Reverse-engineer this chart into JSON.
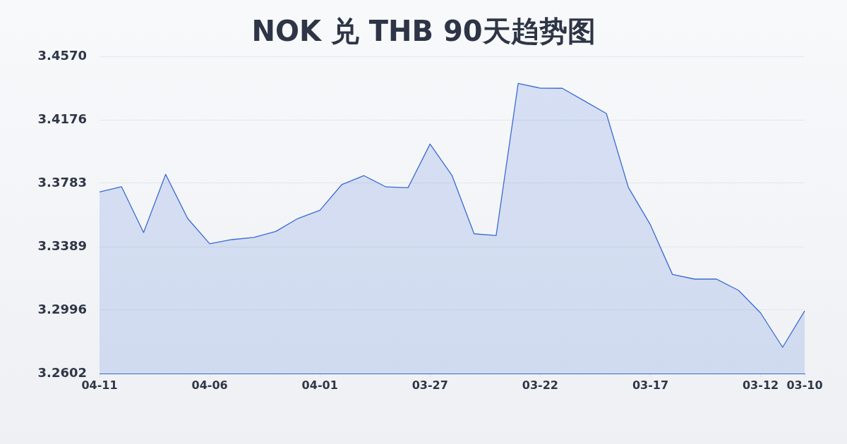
{
  "chart_data": {
    "type": "area",
    "title": "NOK 兑 THB 90天趋势图",
    "categories": [
      "04-11",
      null,
      null,
      null,
      null,
      "04-06",
      null,
      null,
      null,
      null,
      "04-01",
      null,
      null,
      null,
      null,
      "03-27",
      null,
      null,
      null,
      null,
      "03-22",
      null,
      null,
      null,
      null,
      "03-17",
      null,
      null,
      null,
      null,
      "03-12",
      null,
      "03-10"
    ],
    "values": [
      3.3729,
      3.3761,
      3.3477,
      3.3838,
      3.3564,
      3.3407,
      3.3433,
      3.3447,
      3.3484,
      3.3564,
      3.3615,
      3.3775,
      3.383,
      3.376,
      3.3755,
      3.4026,
      3.383,
      3.3469,
      3.3459,
      3.4402,
      3.4373,
      3.4372,
      3.4294,
      3.4216,
      3.3757,
      3.3525,
      3.3217,
      3.3188,
      3.3188,
      3.3118,
      3.2978,
      3.2765,
      3.2991
    ],
    "color": "#3a6bd4",
    "ylim": [
      3.2602,
      3.457
    ],
    "yticks": [
      3.2602,
      3.2996,
      3.3389,
      3.3783,
      3.4176,
      {
        "value": 3.457,
        "label": "3.4570"
      }
    ],
    "grid": "y"
  }
}
